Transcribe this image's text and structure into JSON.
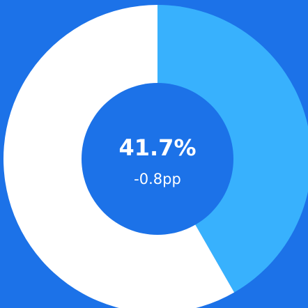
{
  "chart_data": {
    "type": "donut",
    "values": [
      41.7,
      58.3
    ],
    "value_labels": [
      "41.7%",
      null
    ],
    "colors": [
      "#38b1fd",
      "#ffffff"
    ],
    "subtitle": "-0.8pp"
  }
}
